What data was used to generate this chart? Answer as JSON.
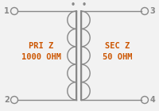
{
  "bg_color": "#f2f2f2",
  "line_color": "#888888",
  "text_color": "#cc5500",
  "pri_label1": "PRI Z",
  "pri_label2": "1000 OHM",
  "sec_label1": "SEC Z",
  "sec_label2": "50 OHM",
  "terminal_labels": [
    "1",
    "2",
    "3",
    "4"
  ],
  "n_loops": 5,
  "fig_width": 2.0,
  "fig_height": 1.4,
  "dpi": 100
}
